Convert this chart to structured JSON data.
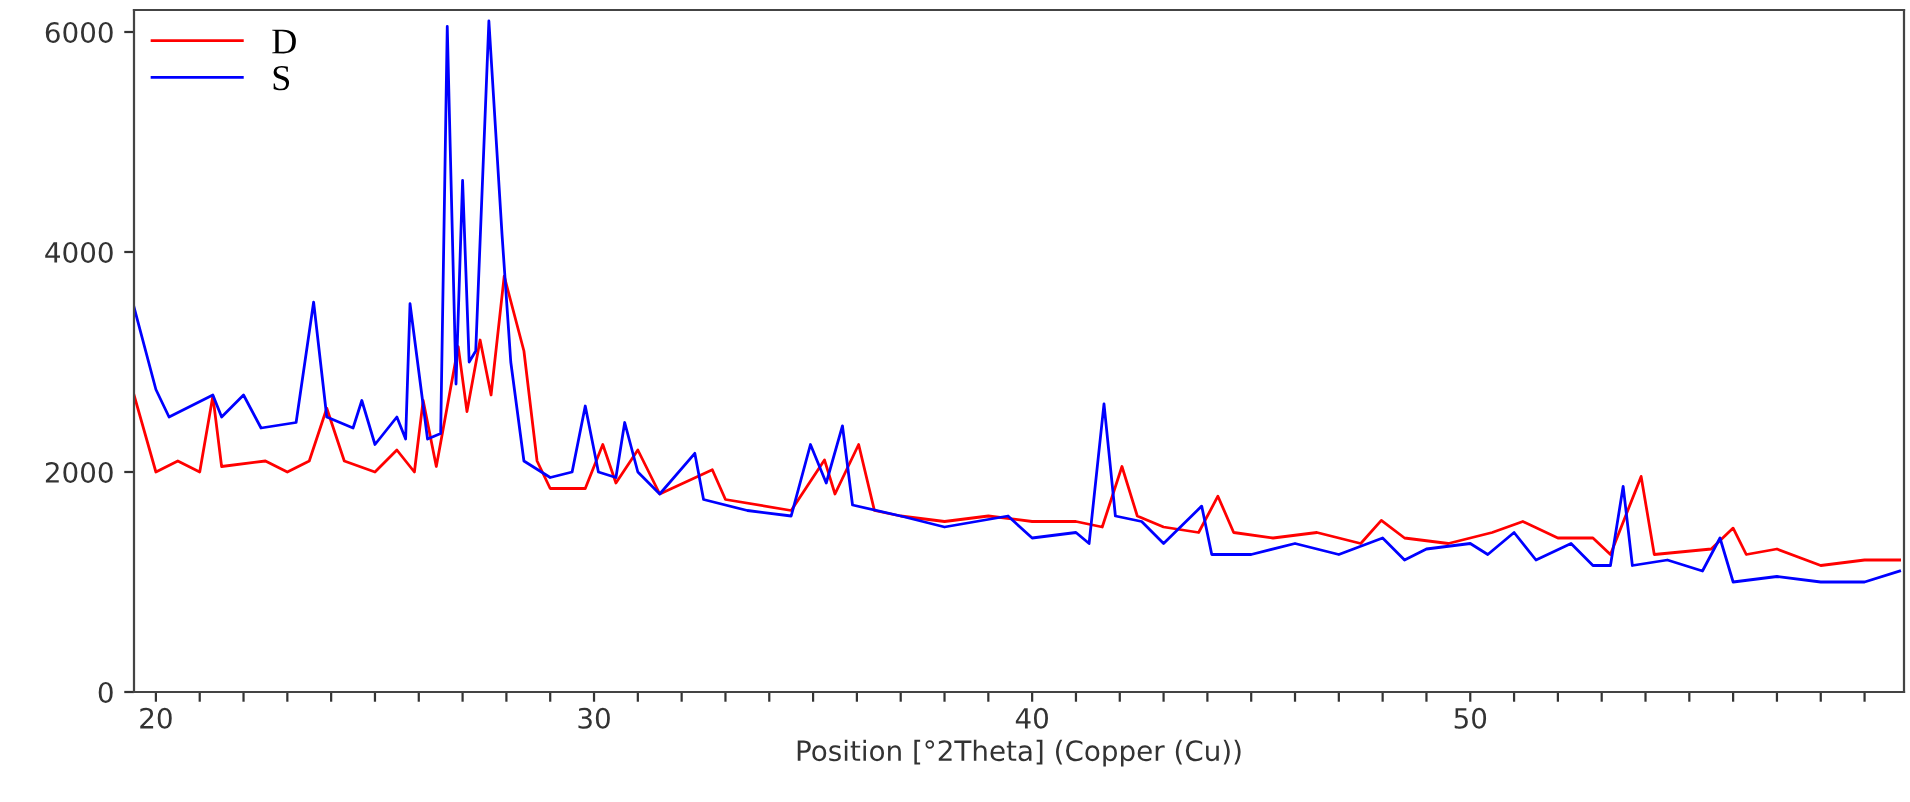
{
  "chart_data": {
    "type": "line",
    "xlabel": "Position [°2Theta] (Copper (Cu))",
    "xlim": [
      19.5,
      59.9
    ],
    "ylim": [
      0,
      6200
    ],
    "xticks": [
      20,
      {
        "value": 21,
        "label": null
      },
      {
        "value": 22,
        "label": null
      },
      {
        "value": 23,
        "label": null
      },
      {
        "value": 24,
        "label": null
      },
      {
        "value": 25,
        "label": null
      },
      {
        "value": 26,
        "label": null
      },
      {
        "value": 27,
        "label": null
      },
      {
        "value": 28,
        "label": null
      },
      {
        "value": 29,
        "label": null
      },
      30,
      {
        "value": 31,
        "label": null
      },
      {
        "value": 32,
        "label": null
      },
      {
        "value": 33,
        "label": null
      },
      {
        "value": 34,
        "label": null
      },
      {
        "value": 35,
        "label": null
      },
      {
        "value": 36,
        "label": null
      },
      {
        "value": 37,
        "label": null
      },
      {
        "value": 38,
        "label": null
      },
      {
        "value": 39,
        "label": null
      },
      40,
      {
        "value": 41,
        "label": null
      },
      {
        "value": 42,
        "label": null
      },
      {
        "value": 43,
        "label": null
      },
      {
        "value": 44,
        "label": null
      },
      {
        "value": 45,
        "label": null
      },
      {
        "value": 46,
        "label": null
      },
      {
        "value": 47,
        "label": null
      },
      {
        "value": 48,
        "label": null
      },
      {
        "value": 49,
        "label": null
      },
      50,
      {
        "value": 51,
        "label": null
      },
      {
        "value": 52,
        "label": null
      },
      {
        "value": 53,
        "label": null
      },
      {
        "value": 54,
        "label": null
      },
      {
        "value": 55,
        "label": null
      },
      {
        "value": 56,
        "label": null
      },
      {
        "value": 57,
        "label": null
      },
      {
        "value": 58,
        "label": null
      },
      {
        "value": 59,
        "label": null
      }
    ],
    "yticks": [
      0,
      2000,
      4000,
      6000
    ],
    "grid": false,
    "legend": "top left",
    "marker": "none",
    "line_style": "solid",
    "series": [
      {
        "name": "D",
        "color": "#ff0000",
        "x": [
          19.5,
          20,
          20.5,
          21,
          21.3,
          21.5,
          22.5,
          23,
          23.5,
          23.9,
          24.3,
          25,
          25.5,
          25.9,
          26.1,
          26.4,
          26.9,
          27.1,
          27.4,
          27.65,
          27.95,
          28.4,
          28.7,
          29,
          29.8,
          30.2,
          30.5,
          31,
          31.5,
          32.7,
          33,
          34.5,
          35.26,
          35.5,
          36.04,
          36.4,
          37,
          38,
          39,
          40,
          41,
          41.6,
          42.05,
          42.4,
          43,
          43.8,
          44.24,
          44.6,
          45.5,
          46.5,
          47.5,
          47.97,
          48.5,
          49.5,
          50.5,
          51.2,
          52,
          52.8,
          53.2,
          53.9,
          54.2,
          55.5,
          56,
          56.3,
          57,
          58,
          59,
          59.8
        ],
        "values": [
          2700,
          2000,
          2100,
          2000,
          2690,
          2050,
          2100,
          2000,
          2100,
          2580,
          2100,
          2000,
          2200,
          2000,
          2650,
          2050,
          3140,
          2550,
          3200,
          2700,
          3780,
          3100,
          2100,
          1850,
          1850,
          2250,
          1900,
          2200,
          1800,
          2020,
          1750,
          1650,
          2110,
          1800,
          2250,
          1650,
          1600,
          1550,
          1600,
          1550,
          1550,
          1500,
          2050,
          1600,
          1500,
          1450,
          1780,
          1450,
          1400,
          1450,
          1350,
          1560,
          1400,
          1350,
          1450,
          1550,
          1400,
          1400,
          1250,
          1960,
          1250,
          1300,
          1490,
          1250,
          1300,
          1150,
          1200,
          1200
        ]
      },
      {
        "name": "S",
        "color": "#0000ff",
        "x": [
          19.5,
          20,
          20.3,
          21.3,
          21.5,
          22,
          22.4,
          23.2,
          23.6,
          23.9,
          24.5,
          24.7,
          25,
          25.5,
          25.7,
          25.8,
          26.2,
          26.5,
          26.65,
          26.85,
          27.0,
          27.15,
          27.3,
          27.6,
          27.9,
          28.1,
          28.4,
          29,
          29.5,
          29.8,
          30.1,
          30.5,
          30.7,
          31,
          31.5,
          32.3,
          32.5,
          33.5,
          34.5,
          34.94,
          35.3,
          35.67,
          35.9,
          37,
          38,
          39.45,
          40,
          41,
          41.3,
          41.64,
          41.9,
          42.5,
          43,
          43.87,
          44.1,
          45,
          46,
          47,
          48,
          48.5,
          49,
          50,
          50.4,
          51,
          51.5,
          52.3,
          52.8,
          53.2,
          53.49,
          53.7,
          54.5,
          55.3,
          55.7,
          56,
          57,
          58,
          59,
          59.8
        ],
        "values": [
          3500,
          2750,
          2500,
          2700,
          2500,
          2700,
          2400,
          2450,
          3545,
          2500,
          2400,
          2650,
          2250,
          2500,
          2300,
          3530,
          2300,
          2350,
          6050,
          2800,
          4650,
          3000,
          3100,
          6100,
          4160,
          3000,
          2100,
          1950,
          2000,
          2600,
          2000,
          1950,
          2450,
          2000,
          1800,
          2170,
          1750,
          1650,
          1600,
          2250,
          1900,
          2420,
          1700,
          1600,
          1500,
          1600,
          1400,
          1450,
          1350,
          2620,
          1600,
          1550,
          1350,
          1690,
          1250,
          1250,
          1350,
          1250,
          1400,
          1200,
          1300,
          1350,
          1250,
          1450,
          1200,
          1350,
          1150,
          1150,
          1870,
          1150,
          1200,
          1100,
          1400,
          1000,
          1050,
          1000,
          1000,
          1100
        ]
      }
    ]
  }
}
